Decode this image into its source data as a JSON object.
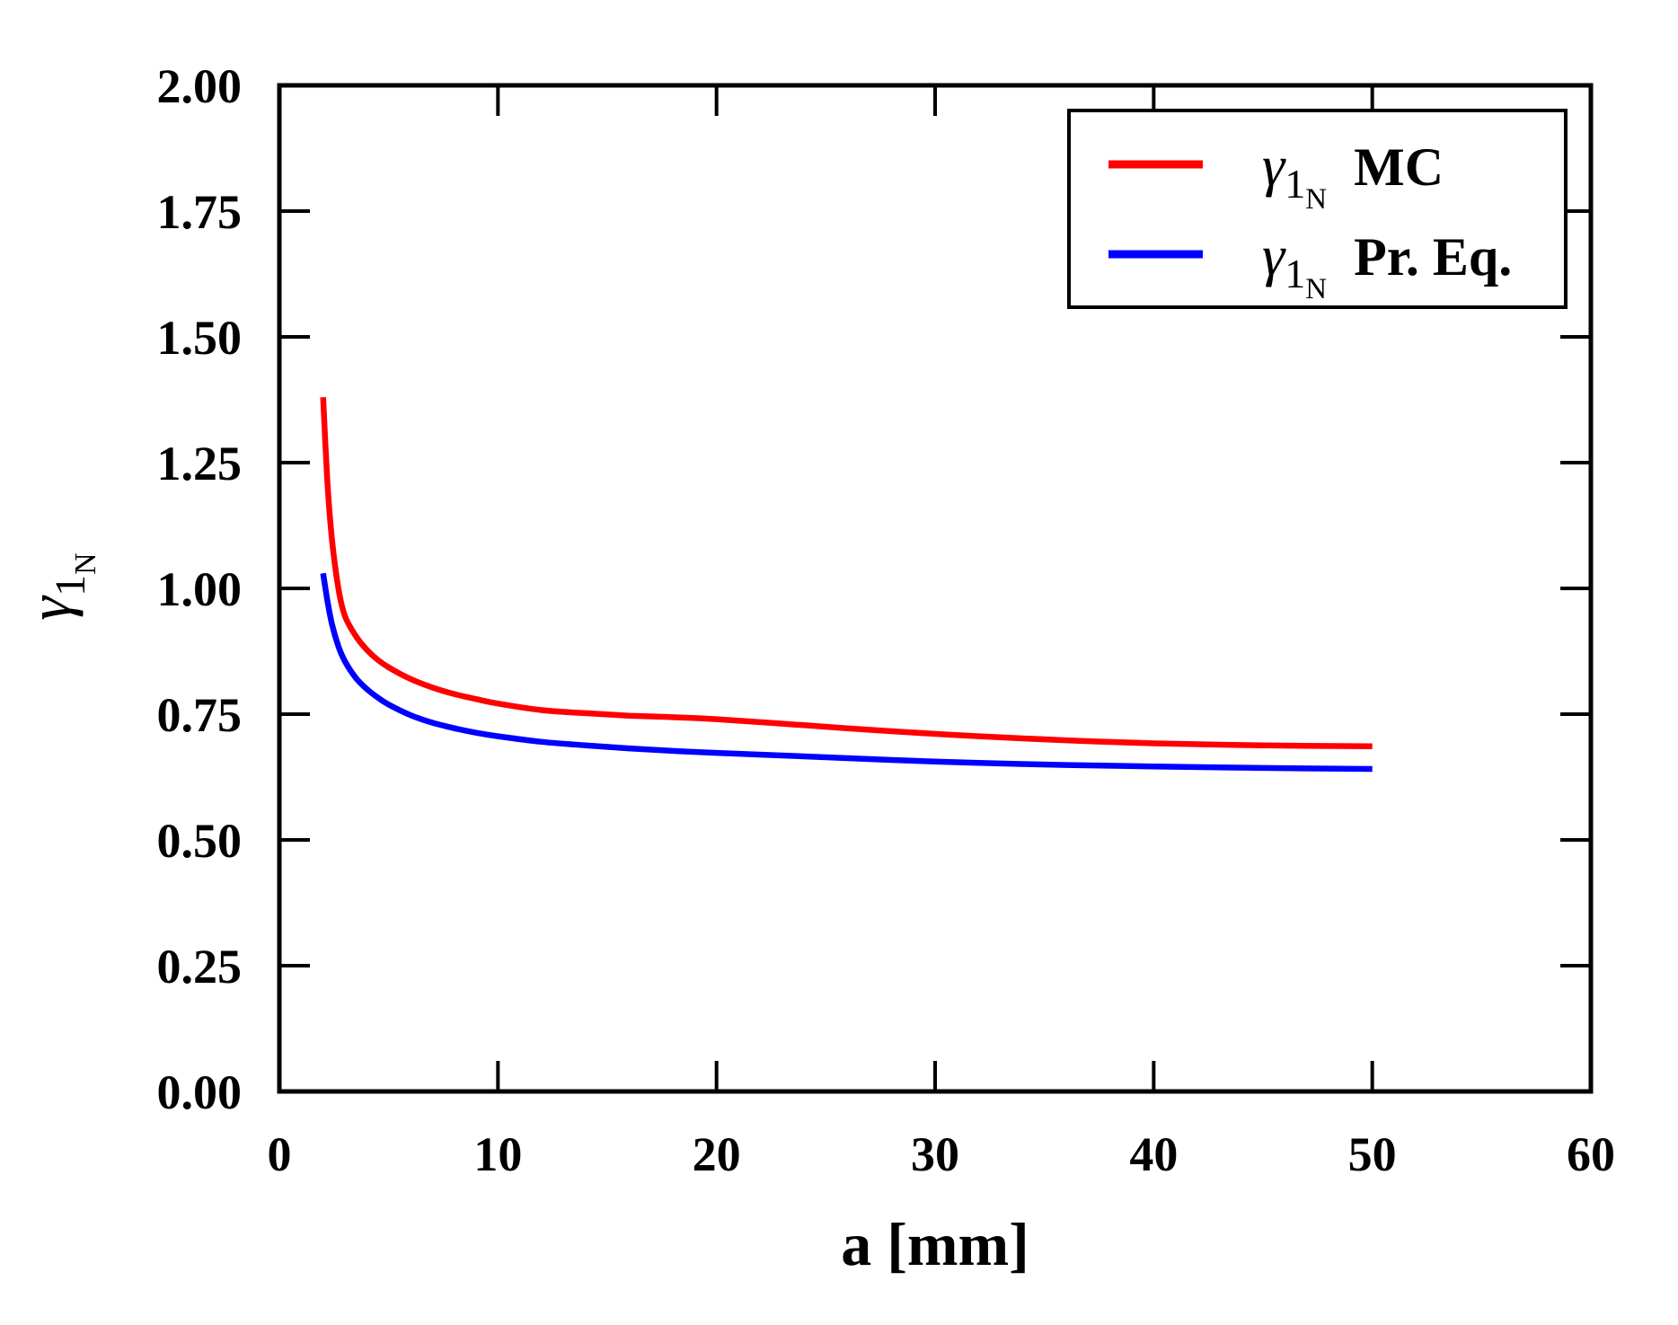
{
  "figure": {
    "background": "#ffffff",
    "axis_color": "#000000",
    "title": ""
  },
  "chart_data": {
    "type": "line",
    "title": "",
    "xlabel": "a [mm]",
    "ylabel": {
      "symbol": "γ",
      "sub": "1",
      "subsub": "N"
    },
    "xlim": [
      0,
      60
    ],
    "ylim": [
      0.0,
      2.0
    ],
    "grid": false,
    "legend_position": "upper right",
    "xticks": {
      "values": [
        0,
        10,
        20,
        30,
        40,
        50,
        60
      ],
      "labels": [
        "0",
        "10",
        "20",
        "30",
        "40",
        "50",
        "60"
      ]
    },
    "yticks": {
      "values": [
        0.0,
        0.25,
        0.5,
        0.75,
        1.0,
        1.25,
        1.5,
        1.75,
        2.0
      ],
      "labels": [
        "0.00",
        "0.25",
        "0.50",
        "0.75",
        "1.00",
        "1.25",
        "1.50",
        "1.75",
        "2.00"
      ]
    },
    "x": [
      2.0,
      2.2,
      2.4,
      2.7,
      3.0,
      3.5,
      4.0,
      4.5,
      5.0,
      6.0,
      7.0,
      8.0,
      9.0,
      10,
      12,
      14,
      16,
      18,
      20,
      24,
      28,
      32,
      36,
      40,
      45,
      50
    ],
    "series": [
      {
        "name": "gamma-1n-mc",
        "legend_label": {
          "symbol": "γ",
          "sub": "1",
          "subsub": "N",
          "suffix": "MC"
        },
        "color": "#ff0000",
        "line_width": 6.5,
        "values": [
          1.38,
          1.21,
          1.1,
          1.0,
          0.945,
          0.905,
          0.878,
          0.858,
          0.843,
          0.82,
          0.803,
          0.79,
          0.78,
          0.771,
          0.758,
          0.752,
          0.747,
          0.744,
          0.74,
          0.728,
          0.716,
          0.706,
          0.698,
          0.692,
          0.688,
          0.686
        ]
      },
      {
        "name": "gamma-1n-pr-eq",
        "legend_label": {
          "symbol": "γ",
          "sub": "1",
          "subsub": "N",
          "suffix": "Pr. Eq."
        },
        "color": "#0000ff",
        "line_width": 6.5,
        "values": [
          1.03,
          0.975,
          0.93,
          0.885,
          0.855,
          0.822,
          0.8,
          0.783,
          0.769,
          0.748,
          0.733,
          0.722,
          0.713,
          0.706,
          0.695,
          0.688,
          0.682,
          0.677,
          0.673,
          0.666,
          0.659,
          0.653,
          0.649,
          0.646,
          0.643,
          0.641
        ]
      }
    ],
    "legend": {
      "border_color": "#000000",
      "background": "#ffffff"
    }
  }
}
